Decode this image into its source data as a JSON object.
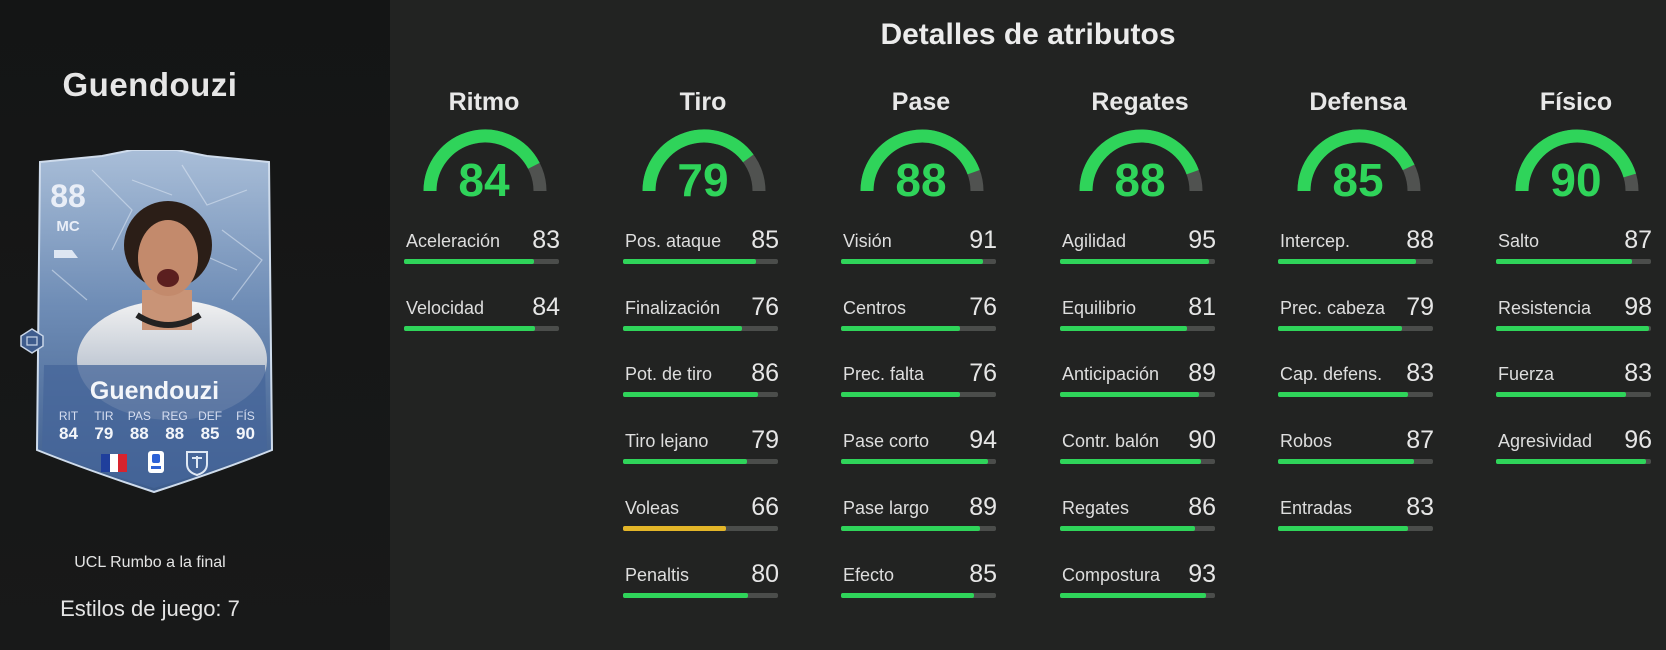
{
  "colors": {
    "high": "#2fd45a",
    "mid": "#e3b528",
    "track": "#4b4d4b",
    "gauge_rest": "#505250"
  },
  "player": {
    "name": "Guendouzi",
    "card": {
      "rating": "88",
      "position": "MC",
      "name": "Guendouzi",
      "stats": [
        {
          "label": "RIT",
          "value": "84"
        },
        {
          "label": "TIR",
          "value": "79"
        },
        {
          "label": "PAS",
          "value": "88"
        },
        {
          "label": "REG",
          "value": "88"
        },
        {
          "label": "DEF",
          "value": "85"
        },
        {
          "label": "FÍS",
          "value": "90"
        }
      ],
      "flags": [
        "france-flag-icon",
        "serie-a-league-icon",
        "lazio-club-icon"
      ]
    },
    "promo": "UCL Rumbo a la final",
    "playstyles": "Estilos de juego: 7"
  },
  "title": "Detalles de atributos",
  "categories": [
    {
      "name": "Ritmo",
      "value": 84,
      "stats": [
        {
          "name": "Aceleración",
          "value": 83
        },
        {
          "name": "Velocidad",
          "value": 84
        }
      ]
    },
    {
      "name": "Tiro",
      "value": 79,
      "stats": [
        {
          "name": "Pos. ataque",
          "value": 85
        },
        {
          "name": "Finalización",
          "value": 76
        },
        {
          "name": "Pot. de tiro",
          "value": 86
        },
        {
          "name": "Tiro lejano",
          "value": 79
        },
        {
          "name": "Voleas",
          "value": 66
        },
        {
          "name": "Penaltis",
          "value": 80
        }
      ]
    },
    {
      "name": "Pase",
      "value": 88,
      "stats": [
        {
          "name": "Visión",
          "value": 91
        },
        {
          "name": "Centros",
          "value": 76
        },
        {
          "name": "Prec. falta",
          "value": 76
        },
        {
          "name": "Pase corto",
          "value": 94
        },
        {
          "name": "Pase largo",
          "value": 89
        },
        {
          "name": "Efecto",
          "value": 85
        }
      ]
    },
    {
      "name": "Regates",
      "value": 88,
      "stats": [
        {
          "name": "Agilidad",
          "value": 95
        },
        {
          "name": "Equilibrio",
          "value": 81
        },
        {
          "name": "Anticipación",
          "value": 89
        },
        {
          "name": "Contr. balón",
          "value": 90
        },
        {
          "name": "Regates",
          "value": 86
        },
        {
          "name": "Compostura",
          "value": 93
        }
      ]
    },
    {
      "name": "Defensa",
      "value": 85,
      "stats": [
        {
          "name": "Intercep.",
          "value": 88
        },
        {
          "name": "Prec. cabeza",
          "value": 79
        },
        {
          "name": "Cap. defens.",
          "value": 83
        },
        {
          "name": "Robos",
          "value": 87
        },
        {
          "name": "Entradas",
          "value": 83
        }
      ]
    },
    {
      "name": "Físico",
      "value": 90,
      "stats": [
        {
          "name": "Salto",
          "value": 87
        },
        {
          "name": "Resistencia",
          "value": 98
        },
        {
          "name": "Fuerza",
          "value": 83
        },
        {
          "name": "Agresividad",
          "value": 96
        }
      ]
    }
  ]
}
